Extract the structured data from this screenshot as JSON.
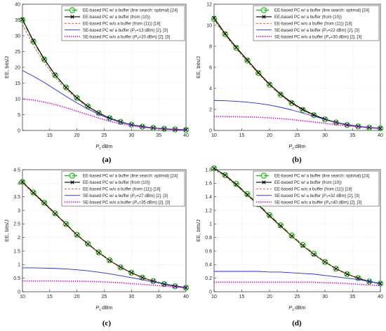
{
  "legend_entries": [
    "EE-based PC w/ a buffer (line search: optimal) [24]",
    "EE-based PC w/ a buffer (from (10))",
    "EE-based PC w/o a buffer (from (11)) [18]"
  ],
  "series_styles": {
    "ls": {
      "color": "#22c022",
      "dash": "7,4",
      "width": 1.6,
      "marker": "circle"
    },
    "prop": {
      "color": "#000000",
      "dash": "",
      "width": 1.1,
      "marker": "x"
    },
    "wob": {
      "color": "#e03c1c",
      "dash": "3,2",
      "width": 0.9,
      "marker": ""
    },
    "sew": {
      "color": "#2424e6",
      "dash": "",
      "width": 0.9,
      "marker": ""
    },
    "sewo": {
      "color": "#e000e0",
      "dash": "1.4,1.6",
      "width": 1.6,
      "marker": ""
    }
  },
  "chart_data": [
    {
      "type": "line",
      "panel_label": "(a)",
      "xlabel_main": "P",
      "xlabel_sub": "c",
      "xlabel_unit": "dBm",
      "ylabel": "EE, bits/J",
      "xlim": [
        10,
        40
      ],
      "ylim": [
        0,
        40
      ],
      "xticks": [
        15,
        20,
        25,
        30,
        35,
        40
      ],
      "yticks": [
        0,
        5,
        10,
        15,
        20,
        25,
        30,
        35,
        40
      ],
      "grid": true,
      "legend_position": "top-right",
      "sew_label_pre": "SE-based PC w/ a buffer (",
      "sew_label_P": "P",
      "sew_label_sub": "T",
      "sew_label_post": "=13 dBm) [2], [3]",
      "sewo_label_pre": "SE-based PC w/o a buffer (",
      "sewo_label_P": "P",
      "sewo_label_sub": "T",
      "sewo_label_post": "=20 dBm) [2], [3]",
      "x": [
        10,
        12,
        14,
        16,
        18,
        20,
        22,
        24,
        26,
        28,
        30,
        32,
        34,
        36,
        38,
        40
      ],
      "series": [
        {
          "key": "ls",
          "name": "EE-based PC w/ a buffer (line search: optimal) [24]",
          "values": [
            35,
            28.2,
            22.5,
            17.5,
            13.6,
            10.3,
            7.6,
            5.5,
            3.9,
            2.7,
            1.8,
            1.2,
            0.8,
            0.5,
            0.3,
            0.2
          ]
        },
        {
          "key": "prop",
          "name": "EE-based PC w/ a buffer (from (10))",
          "values": [
            35.2,
            28.4,
            22.6,
            17.6,
            13.6,
            10.3,
            7.6,
            5.5,
            3.9,
            2.7,
            1.8,
            1.2,
            0.8,
            0.5,
            0.3,
            0.2
          ]
        },
        {
          "key": "wob",
          "name": "EE-based PC w/o a buffer (from (11)) [18]",
          "values": [
            33.5,
            27,
            21.5,
            16.8,
            13,
            10,
            7.4,
            5.4,
            3.8,
            2.7,
            1.8,
            1.2,
            0.8,
            0.5,
            0.3,
            0.2
          ]
        },
        {
          "key": "sew",
          "values": [
            19,
            17.2,
            15.2,
            13,
            10.8,
            8.7,
            6.8,
            5.1,
            3.7,
            2.6,
            1.8,
            1.2,
            0.8,
            0.5,
            0.3,
            0.2
          ]
        },
        {
          "key": "sewo",
          "values": [
            10,
            9.6,
            9,
            8.2,
            7.2,
            6.1,
            5,
            3.9,
            2.9,
            2.1,
            1.5,
            1,
            0.7,
            0.5,
            0.3,
            0.2
          ]
        }
      ]
    },
    {
      "type": "line",
      "panel_label": "(b)",
      "xlabel_main": "P",
      "xlabel_sub": "c",
      "xlabel_unit": "dBm",
      "ylabel": "EE, bits/J",
      "xlim": [
        10,
        40
      ],
      "ylim": [
        0,
        12
      ],
      "xticks": [
        10,
        15,
        20,
        25,
        30,
        35,
        40
      ],
      "yticks": [
        0,
        2,
        4,
        6,
        8,
        10,
        12
      ],
      "grid": true,
      "legend_position": "top-right",
      "sew_label_pre": "SE-based PC w/ a buffer (",
      "sew_label_P": "P",
      "sew_label_sub": "T",
      "sew_label_post": "=22 dBm) [2], [3]",
      "sewo_label_pre": "SE-based PC w/o a buffer (",
      "sewo_label_P": "P",
      "sewo_label_sub": "T",
      "sewo_label_post": "=30 dBm) [2], [3]",
      "x": [
        10,
        12,
        14,
        16,
        18,
        20,
        22,
        24,
        26,
        28,
        30,
        32,
        34,
        36,
        38,
        40
      ],
      "series": [
        {
          "key": "ls",
          "values": [
            10.6,
            9.15,
            7.85,
            6.65,
            5.45,
            4.35,
            3.4,
            2.6,
            1.95,
            1.45,
            1.05,
            0.75,
            0.52,
            0.38,
            0.27,
            0.2
          ]
        },
        {
          "key": "prop",
          "values": [
            10.7,
            9.2,
            7.9,
            6.7,
            5.5,
            4.4,
            3.45,
            2.65,
            2,
            1.48,
            1.07,
            0.76,
            0.53,
            0.38,
            0.27,
            0.2
          ]
        },
        {
          "key": "wob",
          "values": [
            10.5,
            9.05,
            7.75,
            6.55,
            5.4,
            4.3,
            3.35,
            2.55,
            1.9,
            1.4,
            1.02,
            0.73,
            0.51,
            0.37,
            0.27,
            0.2
          ]
        },
        {
          "key": "sew",
          "values": [
            2.85,
            2.82,
            2.77,
            2.69,
            2.57,
            2.41,
            2.2,
            1.95,
            1.65,
            1.35,
            1.05,
            0.78,
            0.56,
            0.4,
            0.28,
            0.2
          ]
        },
        {
          "key": "sewo",
          "values": [
            1.32,
            1.31,
            1.3,
            1.28,
            1.25,
            1.2,
            1.13,
            1.03,
            0.92,
            0.8,
            0.68,
            0.55,
            0.44,
            0.34,
            0.26,
            0.2
          ]
        }
      ]
    },
    {
      "type": "line",
      "panel_label": "(c)",
      "xlabel_main": "P",
      "xlabel_sub": "c",
      "xlabel_unit": "dBm",
      "ylabel": "EE, bits/J",
      "xlim": [
        10,
        40
      ],
      "ylim": [
        0,
        4.5
      ],
      "xticks": [
        10,
        15,
        20,
        25,
        30,
        35,
        40
      ],
      "yticks": [
        0,
        0.5,
        1,
        1.5,
        2,
        2.5,
        3,
        3.5,
        4,
        4.5
      ],
      "grid": true,
      "legend_position": "top-right",
      "sew_label_pre": "SE-based PC w/ a buffer (",
      "sew_label_P": "P",
      "sew_label_sub": "T",
      "sew_label_post": "=27 dBm) [2], [3]",
      "sewo_label_pre": "SE-based PC w/o a buffer (",
      "sewo_label_P": "P",
      "sewo_label_sub": "T",
      "sewo_label_post": "=35 dBm) [2], [3]",
      "x": [
        10,
        12,
        14,
        16,
        18,
        20,
        22,
        24,
        26,
        28,
        30,
        32,
        34,
        36,
        38,
        40
      ],
      "series": [
        {
          "key": "ls",
          "values": [
            4.05,
            3.66,
            3.28,
            2.89,
            2.5,
            2.1,
            1.77,
            1.45,
            1.16,
            0.9,
            0.7,
            0.52,
            0.39,
            0.28,
            0.2,
            0.15
          ]
        },
        {
          "key": "prop",
          "values": [
            4.05,
            3.65,
            3.27,
            2.88,
            2.49,
            2.09,
            1.76,
            1.44,
            1.15,
            0.9,
            0.7,
            0.52,
            0.39,
            0.28,
            0.2,
            0.15
          ]
        },
        {
          "key": "wob",
          "values": [
            4.02,
            3.62,
            3.24,
            2.86,
            2.47,
            2.08,
            1.75,
            1.43,
            1.14,
            0.89,
            0.69,
            0.52,
            0.39,
            0.28,
            0.2,
            0.15
          ]
        },
        {
          "key": "sew",
          "values": [
            0.88,
            0.88,
            0.87,
            0.86,
            0.84,
            0.81,
            0.77,
            0.72,
            0.66,
            0.59,
            0.52,
            0.44,
            0.36,
            0.29,
            0.22,
            0.16
          ]
        },
        {
          "key": "sewo",
          "values": [
            0.4,
            0.4,
            0.4,
            0.4,
            0.39,
            0.39,
            0.38,
            0.37,
            0.35,
            0.33,
            0.3,
            0.27,
            0.24,
            0.21,
            0.18,
            0.14
          ]
        }
      ]
    },
    {
      "type": "line",
      "panel_label": "(d)",
      "xlabel_main": "P",
      "xlabel_sub": "c",
      "xlabel_unit": "dBm",
      "ylabel": "EE, bits/J",
      "xlim": [
        10,
        40
      ],
      "ylim": [
        0,
        1.8
      ],
      "xticks": [
        10,
        15,
        20,
        25,
        30,
        35,
        40
      ],
      "yticks": [
        0,
        0.2,
        0.4,
        0.6,
        0.8,
        1,
        1.2,
        1.4,
        1.6,
        1.8
      ],
      "grid": true,
      "legend_position": "top-right",
      "sew_label_pre": "SE-based PC w/ a buffer (",
      "sew_label_P": "P",
      "sew_label_sub": "T",
      "sew_label_post": "=32 dBm) [2], [3]",
      "sewo_label_pre": "SE-based PC w/o a buffer (",
      "sewo_label_P": "P",
      "sewo_label_sub": "T",
      "sewo_label_post": "=40 dBm) [2], [3]",
      "x": [
        10,
        12,
        14,
        16,
        18,
        20,
        22,
        24,
        26,
        28,
        30,
        32,
        34,
        36,
        38,
        40
      ],
      "series": [
        {
          "key": "ls",
          "values": [
            1.82,
            1.72,
            1.59,
            1.44,
            1.29,
            1.13,
            0.98,
            0.83,
            0.69,
            0.56,
            0.44,
            0.34,
            0.26,
            0.2,
            0.15,
            0.12
          ]
        },
        {
          "key": "prop",
          "values": [
            1.82,
            1.72,
            1.58,
            1.43,
            1.28,
            1.12,
            0.97,
            0.82,
            0.68,
            0.55,
            0.44,
            0.34,
            0.26,
            0.2,
            0.15,
            0.12
          ]
        },
        {
          "key": "wob",
          "values": [
            1.8,
            1.7,
            1.57,
            1.42,
            1.27,
            1.11,
            0.96,
            0.82,
            0.68,
            0.55,
            0.44,
            0.34,
            0.26,
            0.2,
            0.15,
            0.12
          ]
        },
        {
          "key": "sew",
          "values": [
            0.3,
            0.3,
            0.3,
            0.3,
            0.3,
            0.29,
            0.29,
            0.28,
            0.27,
            0.26,
            0.24,
            0.22,
            0.2,
            0.18,
            0.15,
            0.12
          ]
        },
        {
          "key": "sewo",
          "values": [
            0.14,
            0.14,
            0.14,
            0.14,
            0.14,
            0.14,
            0.14,
            0.14,
            0.14,
            0.14,
            0.13,
            0.13,
            0.12,
            0.11,
            0.1,
            0.09
          ]
        }
      ]
    }
  ]
}
